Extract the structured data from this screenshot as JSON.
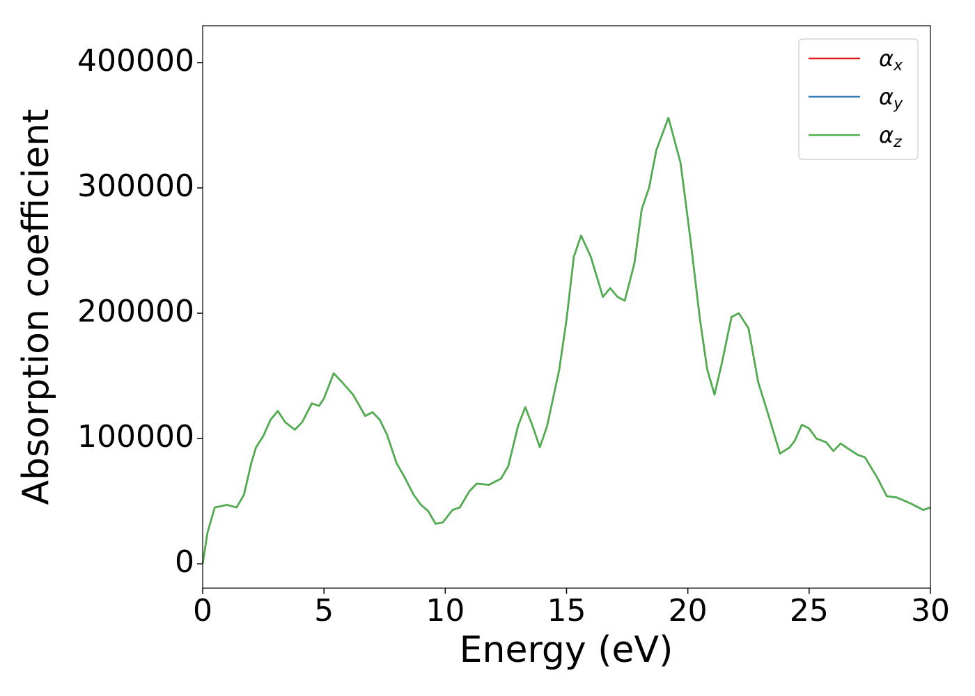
{
  "chart_data": {
    "type": "line",
    "x_label": "Energy (eV)",
    "y_label": "Absorption coefficient",
    "xlim": [
      0,
      30
    ],
    "ylim": [
      -19400,
      429400
    ],
    "xticks": [
      0,
      5,
      10,
      15,
      20,
      25,
      30
    ],
    "yticks": [
      0,
      100000,
      200000,
      300000,
      400000
    ],
    "legend": "upper right",
    "x": [
      0,
      0.2,
      0.5,
      1.0,
      1.4,
      1.7,
      2.0,
      2.2,
      2.5,
      2.8,
      3.1,
      3.4,
      3.8,
      4.1,
      4.5,
      4.8,
      5.0,
      5.4,
      5.7,
      6.2,
      6.7,
      7.0,
      7.3,
      7.6,
      8.0,
      8.3,
      8.7,
      9.0,
      9.3,
      9.6,
      9.9,
      10.3,
      10.6,
      11.0,
      11.3,
      11.8,
      12.3,
      12.6,
      13.0,
      13.3,
      13.6,
      13.9,
      14.2,
      14.7,
      15.0,
      15.3,
      15.6,
      16.0,
      16.5,
      16.8,
      17.1,
      17.4,
      17.8,
      18.1,
      18.4,
      18.7,
      19.2,
      19.7,
      20.1,
      20.5,
      20.8,
      21.1,
      21.4,
      21.8,
      22.1,
      22.5,
      22.9,
      23.3,
      23.8,
      24.2,
      24.4,
      24.7,
      25.0,
      25.3,
      25.7,
      26.0,
      26.3,
      26.6,
      27.0,
      27.3,
      27.8,
      28.2,
      28.6,
      29.2,
      29.7,
      30.0
    ],
    "series": [
      {
        "name": "αx",
        "color": "#e41a1c",
        "values": [
          0,
          25000,
          45000,
          47000,
          45000,
          55000,
          80000,
          93000,
          102000,
          115000,
          122000,
          113000,
          107000,
          113000,
          128000,
          126000,
          132000,
          152000,
          146000,
          135000,
          118000,
          121000,
          115000,
          103000,
          80000,
          70000,
          55000,
          47000,
          42000,
          32000,
          33000,
          43000,
          45000,
          58000,
          64000,
          63000,
          68000,
          78000,
          110000,
          125000,
          110000,
          93000,
          110000,
          155000,
          195000,
          245000,
          262000,
          245000,
          213000,
          220000,
          213000,
          210000,
          240000,
          283000,
          300000,
          330000,
          356000,
          320000,
          260000,
          195000,
          155000,
          135000,
          160000,
          197000,
          200000,
          188000,
          145000,
          120000,
          88000,
          93000,
          98000,
          111000,
          108000,
          100000,
          97000,
          90000,
          96000,
          92000,
          87000,
          85000,
          69000,
          54000,
          53000,
          48000,
          43000,
          45000
        ]
      },
      {
        "name": "αy",
        "color": "#377eb8",
        "values": [
          0,
          25000,
          45000,
          47000,
          45000,
          55000,
          80000,
          93000,
          102000,
          115000,
          122000,
          113000,
          107000,
          113000,
          128000,
          126000,
          132000,
          152000,
          146000,
          135000,
          118000,
          121000,
          115000,
          103000,
          80000,
          70000,
          55000,
          47000,
          42000,
          32000,
          33000,
          43000,
          45000,
          58000,
          64000,
          63000,
          68000,
          78000,
          110000,
          125000,
          110000,
          93000,
          110000,
          155000,
          195000,
          245000,
          262000,
          245000,
          213000,
          220000,
          213000,
          210000,
          240000,
          283000,
          300000,
          330000,
          356000,
          320000,
          260000,
          195000,
          155000,
          135000,
          160000,
          197000,
          200000,
          188000,
          145000,
          120000,
          88000,
          93000,
          98000,
          111000,
          108000,
          100000,
          97000,
          90000,
          96000,
          92000,
          87000,
          85000,
          69000,
          54000,
          53000,
          48000,
          43000,
          45000
        ]
      },
      {
        "name": "αz",
        "color": "#4daf4a",
        "values": [
          0,
          25000,
          45000,
          47000,
          45000,
          55000,
          80000,
          93000,
          102000,
          115000,
          122000,
          113000,
          107000,
          113000,
          128000,
          126000,
          132000,
          152000,
          146000,
          135000,
          118000,
          121000,
          115000,
          103000,
          80000,
          70000,
          55000,
          47000,
          42000,
          32000,
          33000,
          43000,
          45000,
          58000,
          64000,
          63000,
          68000,
          78000,
          110000,
          125000,
          110000,
          93000,
          110000,
          155000,
          195000,
          245000,
          262000,
          245000,
          213000,
          220000,
          213000,
          210000,
          240000,
          283000,
          300000,
          330000,
          356000,
          320000,
          260000,
          195000,
          155000,
          135000,
          160000,
          197000,
          200000,
          188000,
          145000,
          120000,
          88000,
          93000,
          98000,
          111000,
          108000,
          100000,
          97000,
          90000,
          96000,
          92000,
          87000,
          85000,
          69000,
          54000,
          53000,
          48000,
          43000,
          45000
        ]
      }
    ]
  }
}
